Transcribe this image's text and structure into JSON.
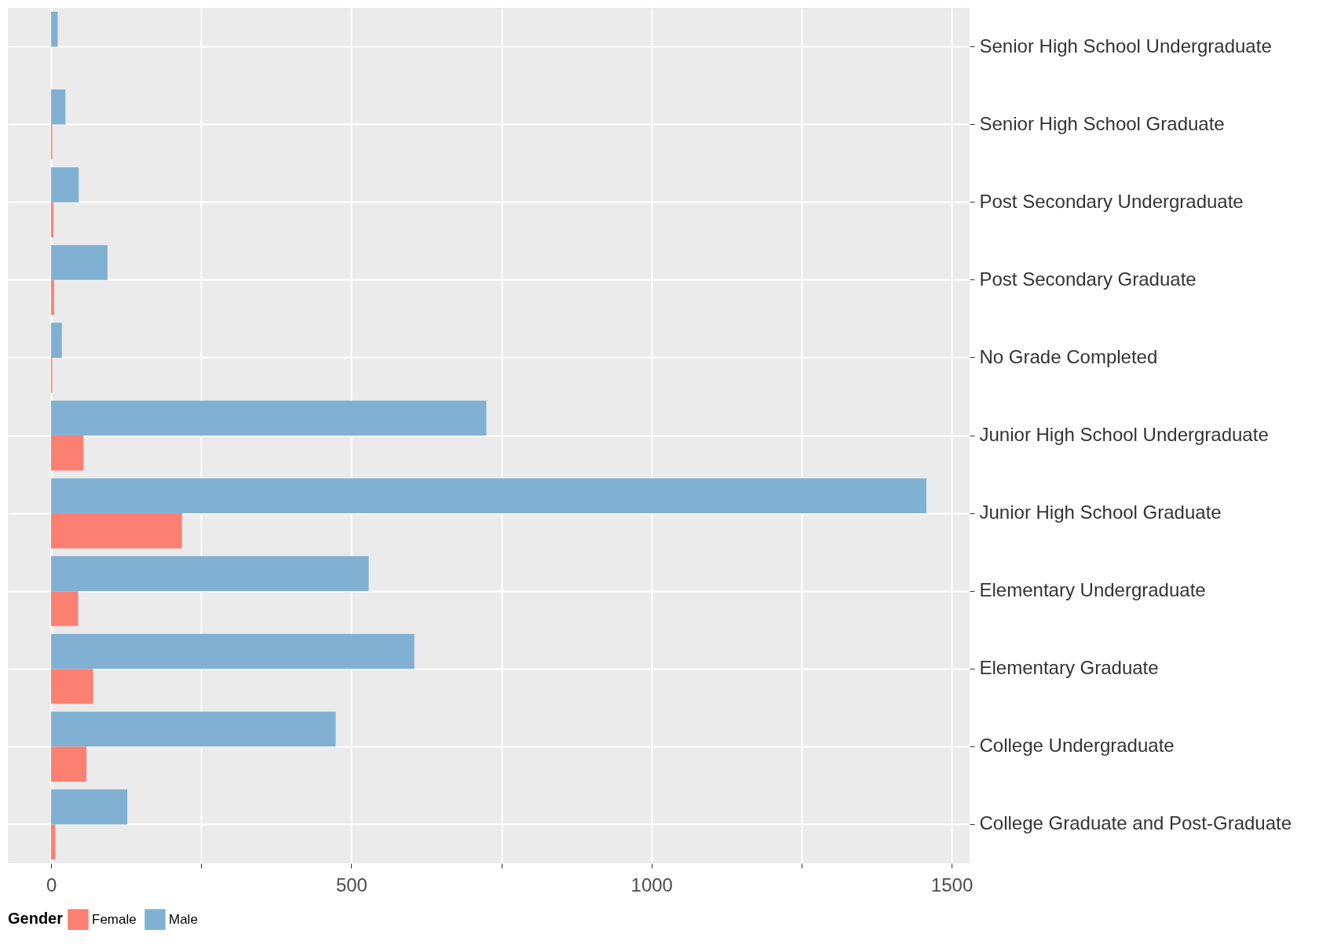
{
  "chart_data": {
    "type": "bar",
    "orientation": "horizontal",
    "categories": [
      "Senior High School Undergraduate",
      "Senior High School Graduate",
      "Post Secondary Undergraduate",
      "Post Secondary Graduate",
      "No Grade Completed",
      "Junior High School Undergraduate",
      "Junior High School Graduate",
      "Elementary Undergraduate",
      "Elementary Graduate",
      "College Undergraduate",
      "College Graduate and Post-Graduate"
    ],
    "series": [
      {
        "name": "Female",
        "color": "#fb8072",
        "values": [
          null,
          2,
          4,
          5,
          2,
          54,
          218,
          45,
          70,
          59,
          7
        ]
      },
      {
        "name": "Male",
        "color": "#80b1d3",
        "values": [
          11,
          24,
          46,
          94,
          18,
          725,
          1458,
          529,
          605,
          474,
          127
        ]
      }
    ],
    "xlim": [
      -72,
      1530
    ],
    "xticks": [
      0,
      {
        "value": 250,
        "label": null
      },
      500,
      {
        "value": 750,
        "label": null
      },
      1000,
      {
        "value": 1250,
        "label": null
      },
      1500
    ],
    "legend_title": "Gender",
    "legend": "bottom",
    "grid": true
  }
}
